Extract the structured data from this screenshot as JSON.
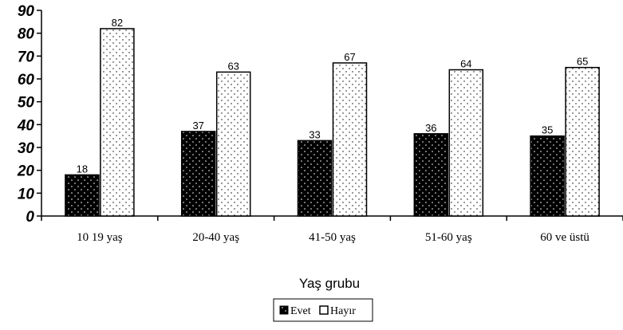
{
  "chart_data": {
    "type": "bar",
    "title": "",
    "xlabel": "Yaş grubu",
    "ylabel": "",
    "ylim": [
      0,
      90
    ],
    "yticks": [
      0,
      10,
      20,
      30,
      40,
      50,
      60,
      70,
      80,
      90
    ],
    "categories": [
      "10 19 yaş",
      "20-40 yaş",
      "41-50 yaş",
      "51-60 yaş",
      "60 ve üstü"
    ],
    "series": [
      {
        "name": "Evet",
        "values": [
          18,
          37,
          33,
          36,
          35
        ],
        "color": "#000000",
        "pattern": "dark-dotted"
      },
      {
        "name": "Hayır",
        "values": [
          82,
          63,
          67,
          64,
          65
        ],
        "color": "#ffffff",
        "pattern": "light-dotted"
      }
    ],
    "legend_position": "bottom",
    "grid": false
  }
}
